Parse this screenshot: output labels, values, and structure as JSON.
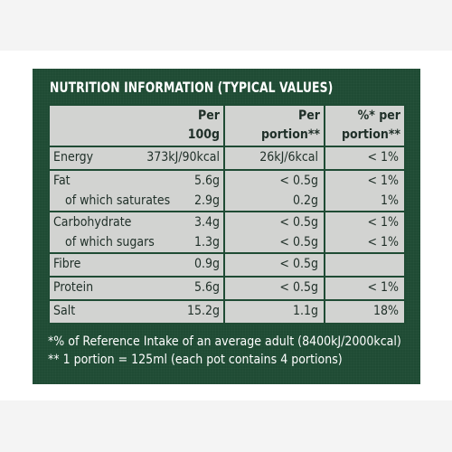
{
  "title": "NUTRITION INFORMATION (TYPICAL VALUES)",
  "headers": {
    "per100_line1": "Per",
    "per100_line2": "100g",
    "portion_line1": "Per",
    "portion_line2": "portion**",
    "ri_line1": "%* per",
    "ri_line2": "portion**"
  },
  "rows": {
    "energy": {
      "name": "Energy",
      "per100": "373kJ/90kcal",
      "portion": "26kJ/6kcal",
      "ri": "< 1%"
    },
    "fat": {
      "name": "Fat",
      "per100": "5.6g",
      "portion": "< 0.5g",
      "ri": "< 1%"
    },
    "saturates": {
      "name": "of which saturates",
      "per100": "2.9g",
      "portion": "0.2g",
      "ri": "1%"
    },
    "carbohydrate": {
      "name": "Carbohydrate",
      "per100": "3.4g",
      "portion": "< 0.5g",
      "ri": "< 1%"
    },
    "sugars": {
      "name": "of which sugars",
      "per100": "1.3g",
      "portion": "< 0.5g",
      "ri": "< 1%"
    },
    "fibre": {
      "name": "Fibre",
      "per100": "0.9g",
      "portion": "< 0.5g",
      "ri": ""
    },
    "protein": {
      "name": "Protein",
      "per100": "5.6g",
      "portion": "< 0.5g",
      "ri": "< 1%"
    },
    "salt": {
      "name": "Salt",
      "per100": "15.2g",
      "portion": "1.1g",
      "ri": "18%"
    }
  },
  "footnotes": {
    "reference_intake": "*% of Reference Intake of an average adult (8400kJ/2000kcal)",
    "portion_note": "** 1 portion = 125ml (each pot contains 4 portions)"
  },
  "colors": {
    "label_background": "#1f4b34",
    "cell_background": "#d2d3d1",
    "text_dark": "#1f2f28",
    "text_light": "#ffffff"
  }
}
